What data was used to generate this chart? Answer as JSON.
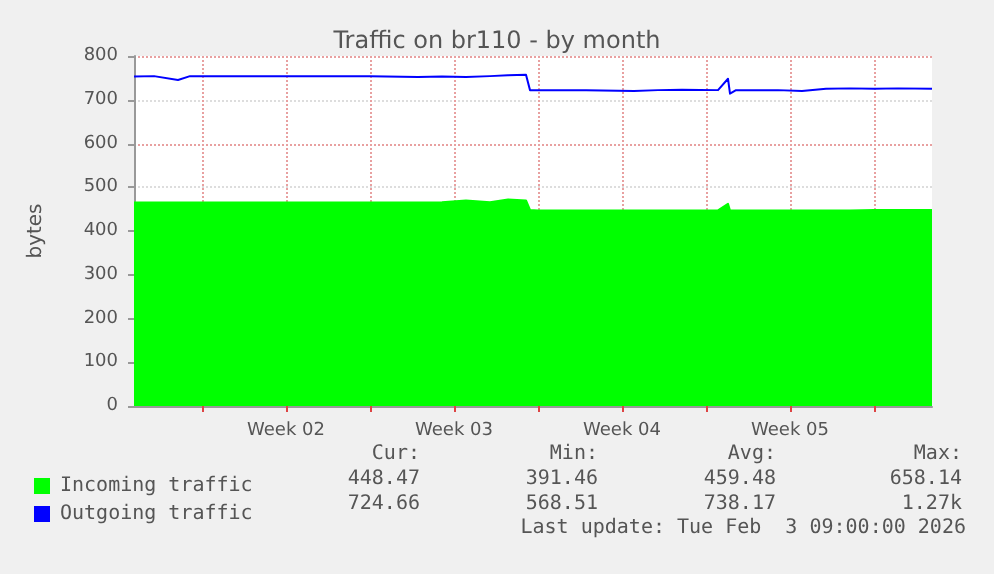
{
  "chart_data": {
    "type": "area",
    "title": "Traffic on br110 - by month",
    "ylabel": "bytes",
    "x": [
      "2026-01-02T04:00",
      "2026-01-03",
      "2026-01-04",
      "2026-01-04T12:00",
      "2026-01-06",
      "2026-01-08",
      "2026-01-10",
      "2026-01-12",
      "2026-01-14",
      "2026-01-15",
      "2026-01-16",
      "2026-01-17",
      "2026-01-17T18:00",
      "2026-01-18T12:00",
      "2026-01-18T16:00",
      "2026-01-19",
      "2026-01-21",
      "2026-01-23",
      "2026-01-24",
      "2026-01-25",
      "2026-01-26T12:00",
      "2026-01-26T22:00",
      "2026-01-27",
      "2026-01-27T06:00",
      "2026-01-29",
      "2026-01-30",
      "2026-01-31",
      "2026-02-01",
      "2026-02-02",
      "2026-02-03",
      "2026-02-04T10:00"
    ],
    "series": [
      {
        "name": "Incoming traffic",
        "type": "area",
        "color": "#00ff00",
        "values": [
          465,
          465,
          465,
          465,
          465,
          465,
          465,
          465,
          465,
          466,
          470,
          466,
          472,
          470,
          448,
          447,
          447,
          447,
          447,
          447,
          447,
          462,
          447,
          447,
          447,
          447,
          447,
          447,
          448,
          448,
          448
        ]
      },
      {
        "name": "Outgoing traffic",
        "type": "line",
        "color": "#0000ff",
        "values": [
          753,
          754,
          745,
          754,
          754,
          754,
          754,
          754,
          752,
          753,
          752,
          754,
          756,
          757,
          722,
          722,
          722,
          720,
          722,
          723,
          722,
          748,
          714,
          722,
          722,
          720,
          725,
          726,
          725,
          726,
          725
        ]
      }
    ],
    "xlim": [
      "2026-01-02T04:00",
      "2026-02-04T10:00"
    ],
    "xticks": [
      {
        "value": "2026-01-05",
        "label": null
      },
      {
        "value": "2026-01-08T12:00",
        "label": "Week 02"
      },
      {
        "value": "2026-01-12",
        "label": null
      },
      {
        "value": "2026-01-15T12:00",
        "label": "Week 03"
      },
      {
        "value": "2026-01-19",
        "label": null
      },
      {
        "value": "2026-01-22T12:00",
        "label": "Week 04"
      },
      {
        "value": "2026-01-26",
        "label": null
      },
      {
        "value": "2026-01-29T12:00",
        "label": "Week 05"
      },
      {
        "value": "2026-02-02",
        "label": null
      }
    ],
    "ylim": [
      0,
      800
    ],
    "yticks": [
      0,
      100,
      200,
      300,
      400,
      500,
      600,
      700,
      800
    ],
    "grid": true,
    "legend": "bottom left",
    "annotations": [
      "Cur:",
      "Min:",
      "Avg:",
      "Max:",
      "448.47",
      "391.46",
      "459.48",
      "658.14",
      "724.66",
      "568.51",
      "738.17",
      "1.27k",
      "Last update: Tue Feb  3 09:00:00 2026"
    ]
  }
}
